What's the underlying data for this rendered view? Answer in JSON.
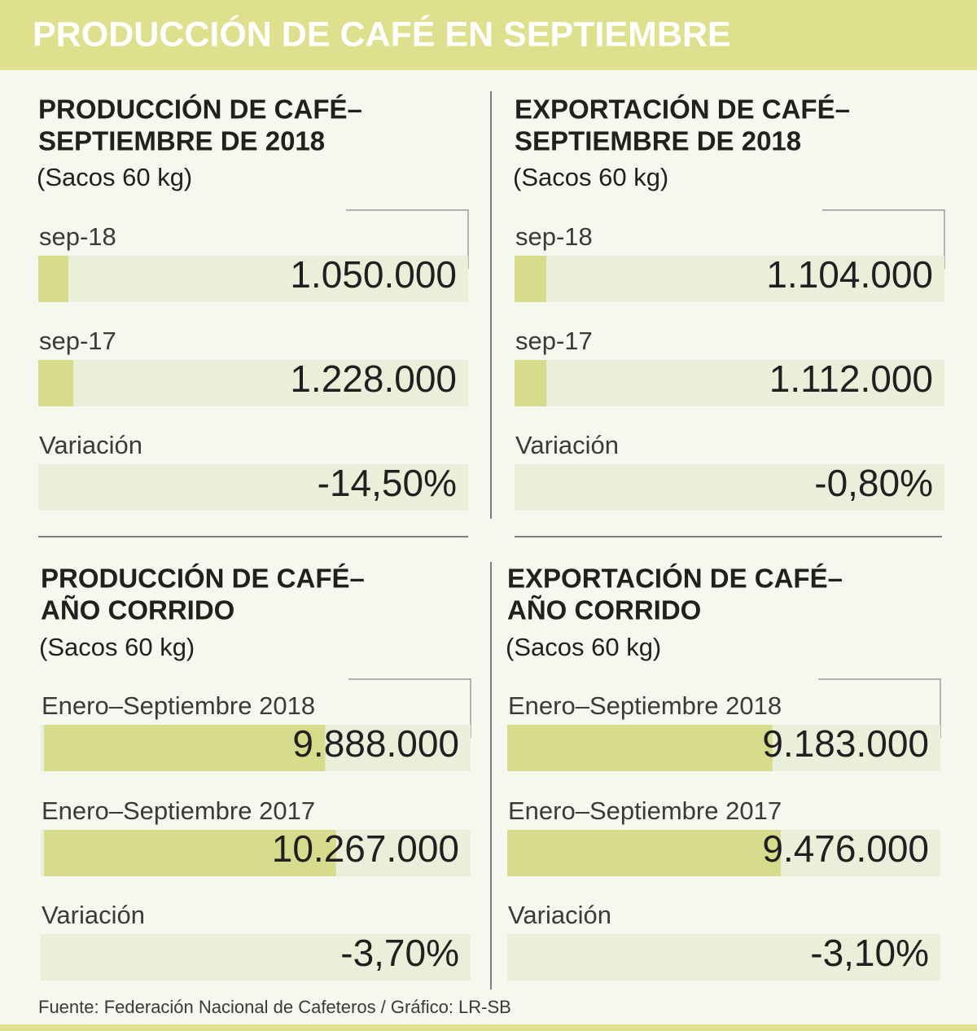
{
  "header": "PRODUCCIÓN DE CAFÉ EN SEPTIEMBRE",
  "source": "Fuente: Federación Nacional de Cafeteros / Gráfico: LR-SB",
  "chart_data": [
    {
      "type": "bar",
      "title": [
        "PRODUCCIÓN DE CAFÉ–",
        "SEPTIEMBRE DE 2018"
      ],
      "subtitle": "(Sacos 60 kg)",
      "categories": [
        "sep-18",
        "sep-17"
      ],
      "values": [
        1050000,
        1228000
      ],
      "value_labels": [
        "1.050.000",
        "1.228.000"
      ],
      "color": "#d6dc8c",
      "xlim": [
        0,
        15000000
      ],
      "variation": {
        "label": "Variación",
        "value": -14.5,
        "value_label": "-14,50%"
      }
    },
    {
      "type": "bar",
      "title": [
        "EXPORTACIÓN DE CAFÉ–",
        "SEPTIEMBRE DE 2018"
      ],
      "subtitle": "(Sacos 60 kg)",
      "categories": [
        "sep-18",
        "sep-17"
      ],
      "values": [
        1104000,
        1112000
      ],
      "value_labels": [
        "1.104.000",
        "1.112.000"
      ],
      "color": "#d6dc8c",
      "xlim": [
        0,
        15000000
      ],
      "variation": {
        "label": "Variación",
        "value": -0.8,
        "value_label": "-0,80%"
      }
    },
    {
      "type": "bar",
      "title": [
        "PRODUCCIÓN DE CAFÉ–",
        "AÑO CORRIDO"
      ],
      "subtitle": "(Sacos 60 kg)",
      "categories": [
        "Enero–Septiembre 2018",
        "Enero–Septiembre 2017"
      ],
      "values": [
        9888000,
        10267000
      ],
      "value_labels": [
        "9.888.000",
        "10.267.000"
      ],
      "color": "#d6dc8c",
      "xlim": [
        0,
        15000000
      ],
      "variation": {
        "label": "Variación",
        "value": -3.7,
        "value_label": "-3,70%"
      }
    },
    {
      "type": "bar",
      "title": [
        "EXPORTACIÓN DE CAFÉ–",
        "AÑO CORRIDO"
      ],
      "subtitle": "(Sacos 60 kg)",
      "categories": [
        "Enero–Septiembre 2018",
        "Enero–Septiembre 2017"
      ],
      "values": [
        9183000,
        9476000
      ],
      "value_labels": [
        "9.183.000",
        "9.476.000"
      ],
      "color": "#d6dc8c",
      "xlim": [
        0,
        15000000
      ],
      "variation": {
        "label": "Variación",
        "value": -3.1,
        "value_label": "-3,10%"
      }
    }
  ]
}
